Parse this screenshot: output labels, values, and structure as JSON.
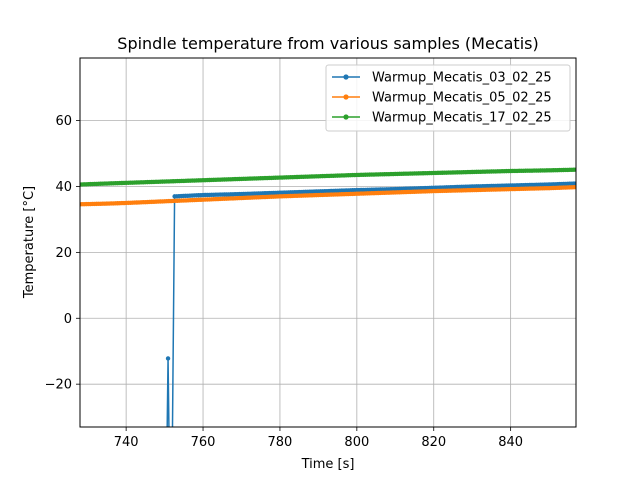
{
  "chart_data": {
    "type": "line",
    "title": "Spindle temperature from various samples (Mecatis)",
    "xlabel": "Time [s]",
    "ylabel": "Temperature [°C]",
    "xlim": [
      728,
      857
    ],
    "ylim": [
      -33,
      79
    ],
    "xticks": [
      740,
      760,
      780,
      800,
      820,
      840
    ],
    "yticks": [
      -20,
      0,
      20,
      40,
      60
    ],
    "grid": true,
    "legend_position": "upper-right",
    "series": [
      {
        "name": "Warmup_Mecatis_03_02_25",
        "color": "#1f77b4",
        "marker": "circle",
        "x": [
          750.6,
          750.9,
          751.2,
          752.0,
          752.6,
          760,
          770,
          780,
          790,
          800,
          810,
          820,
          830,
          840,
          850,
          857
        ],
        "y": [
          -40,
          -12.2,
          -40,
          -40,
          37.0,
          37.4,
          37.7,
          38.1,
          38.5,
          38.9,
          39.2,
          39.6,
          40.0,
          40.3,
          40.6,
          40.9
        ]
      },
      {
        "name": "Warmup_Mecatis_05_02_25",
        "color": "#ff7f0e",
        "marker": "circle",
        "x": [
          728,
          735,
          740,
          750,
          760,
          770,
          780,
          790,
          800,
          810,
          820,
          830,
          840,
          850,
          857
        ],
        "y": [
          34.6,
          34.8,
          35.0,
          35.5,
          36.0,
          36.5,
          37.0,
          37.4,
          37.8,
          38.2,
          38.6,
          38.9,
          39.2,
          39.5,
          39.8
        ]
      },
      {
        "name": "Warmup_Mecatis_17_02_25",
        "color": "#2ca02c",
        "marker": "circle",
        "x": [
          728,
          735,
          740,
          750,
          760,
          770,
          780,
          790,
          800,
          810,
          820,
          830,
          840,
          850,
          857
        ],
        "y": [
          40.6,
          40.9,
          41.1,
          41.5,
          41.9,
          42.3,
          42.7,
          43.1,
          43.5,
          43.8,
          44.1,
          44.4,
          44.7,
          44.9,
          45.1
        ]
      }
    ]
  }
}
